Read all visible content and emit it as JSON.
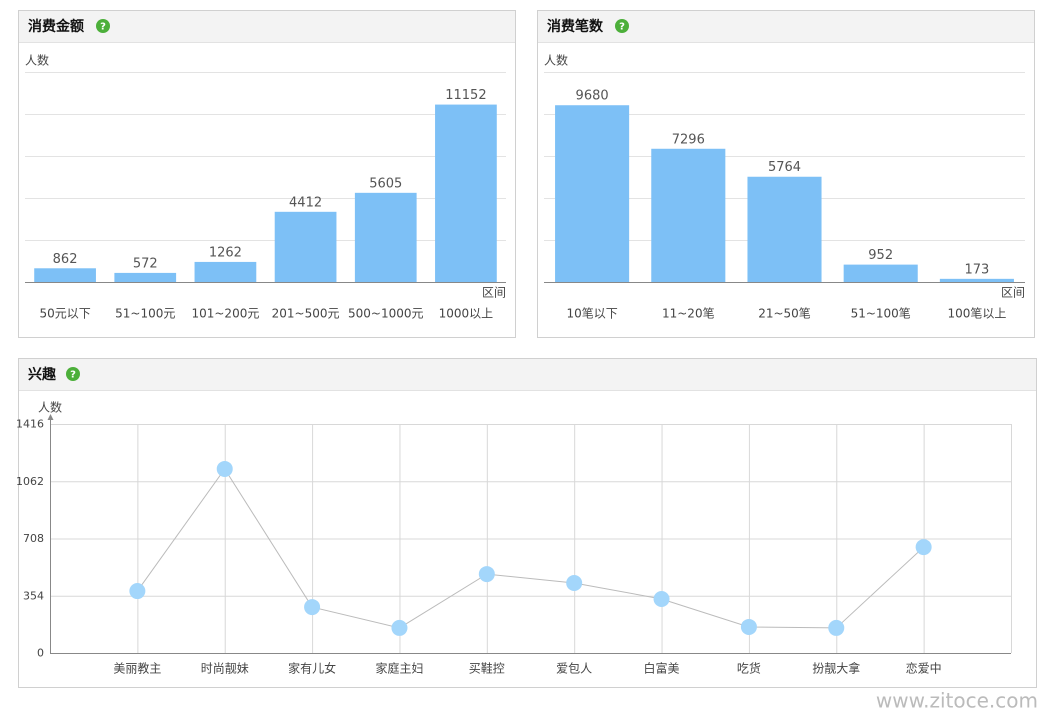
{
  "chart_data": [
    {
      "type": "bar",
      "title": "消费金额",
      "y_label": "人数",
      "x_label": "区间",
      "categories": [
        "50元以下",
        "51~100元",
        "101~200元",
        "201~500元",
        "500~1000元",
        "1000以上"
      ],
      "values": [
        862,
        572,
        1262,
        4412,
        5605,
        11152
      ],
      "color": "#7dc0f6",
      "ylim": [
        0,
        13200
      ],
      "grid": true
    },
    {
      "type": "bar",
      "title": "消费笔数",
      "y_label": "人数",
      "x_label": "区间",
      "categories": [
        "10笔以下",
        "11~20笔",
        "21~50笔",
        "51~100笔",
        "100笔以上"
      ],
      "values": [
        9680,
        7296,
        5764,
        952,
        173
      ],
      "color": "#7dc0f6",
      "ylim": [
        0,
        11500
      ],
      "grid": true
    },
    {
      "type": "line",
      "title": "兴趣",
      "y_label": "人数",
      "categories": [
        "美丽教主",
        "时尚靓妹",
        "家有儿女",
        "家庭主妇",
        "买鞋控",
        "爱包人",
        "白富美",
        "吃货",
        "扮靓大拿",
        "恋爱中"
      ],
      "values": [
        383,
        1138,
        284,
        155,
        488,
        433,
        334,
        161,
        155,
        655
      ],
      "color": "#a3d6fb",
      "ylim": [
        0,
        1416
      ],
      "yticks": [
        0,
        354,
        708,
        1062,
        1416
      ],
      "grid": true
    }
  ],
  "watermark": "www.zitoce.com"
}
